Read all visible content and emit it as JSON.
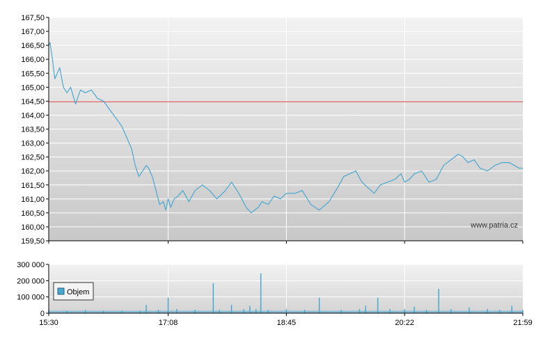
{
  "watermark": "www.patria.cz",
  "chart_data": [
    {
      "type": "line",
      "title": "",
      "xlabel": "",
      "ylabel": "",
      "ylim": [
        159.5,
        167.5
      ],
      "y_ticks": [
        "167,50",
        "167,00",
        "166,50",
        "166,00",
        "165,50",
        "165,00",
        "164,50",
        "164,00",
        "163,50",
        "163,00",
        "162,50",
        "162,00",
        "161,50",
        "161,00",
        "160,50",
        "160,00",
        "159,50"
      ],
      "x_ticks": [
        "15:30",
        "17:08",
        "18:45",
        "20:22",
        "21:59"
      ],
      "x_range": [
        "15:30",
        "21:59"
      ],
      "reference_line": {
        "value": 164.48,
        "color": "#cc3333"
      },
      "line_color": "#4aa8d0",
      "grid": true,
      "series": [
        {
          "x": [
            "15:30",
            "15:31",
            "15:33",
            "15:35",
            "15:37",
            "15:39",
            "15:42",
            "15:45",
            "15:48",
            "15:52",
            "15:56",
            "16:00",
            "16:05",
            "16:10",
            "16:15",
            "16:20",
            "16:25",
            "16:30",
            "16:34",
            "16:38",
            "16:41",
            "16:44",
            "16:47",
            "16:50",
            "16:52",
            "16:55",
            "16:58",
            "17:01",
            "17:04",
            "17:06",
            "17:08",
            "17:10",
            "17:13",
            "17:16",
            "17:20",
            "17:25",
            "17:30",
            "17:36",
            "17:42",
            "17:48",
            "17:55",
            "18:00",
            "18:06",
            "18:12",
            "18:16",
            "18:19",
            "18:22",
            "18:25",
            "18:30",
            "18:35",
            "18:40",
            "18:45",
            "18:52",
            "18:58",
            "19:05",
            "19:12",
            "19:20",
            "19:27",
            "19:32",
            "19:37",
            "19:42",
            "19:47",
            "19:52",
            "19:57",
            "20:02",
            "20:08",
            "20:14",
            "20:19",
            "20:22",
            "20:26",
            "20:30",
            "20:36",
            "20:42",
            "20:48",
            "20:54",
            "21:00",
            "21:06",
            "21:10",
            "21:14",
            "21:19",
            "21:24",
            "21:30",
            "21:36",
            "21:42",
            "21:48",
            "21:52",
            "21:56",
            "21:59"
          ],
          "values": [
            166.5,
            166.6,
            166.0,
            165.3,
            165.5,
            165.7,
            165.0,
            164.8,
            165.0,
            164.4,
            164.9,
            164.8,
            164.9,
            164.6,
            164.5,
            164.2,
            163.9,
            163.6,
            163.2,
            162.8,
            162.2,
            161.8,
            162.0,
            162.2,
            162.1,
            161.8,
            161.3,
            160.8,
            160.9,
            160.6,
            161.0,
            160.7,
            161.0,
            161.1,
            161.3,
            160.9,
            161.3,
            161.5,
            161.3,
            161.0,
            161.3,
            161.6,
            161.2,
            160.7,
            160.5,
            160.6,
            160.7,
            160.9,
            160.8,
            161.1,
            161.0,
            161.2,
            161.2,
            161.3,
            160.8,
            160.6,
            160.9,
            161.4,
            161.8,
            161.9,
            162.0,
            161.6,
            161.4,
            161.2,
            161.5,
            161.6,
            161.7,
            161.9,
            161.6,
            161.7,
            161.9,
            162.0,
            161.6,
            161.7,
            162.2,
            162.4,
            162.6,
            162.5,
            162.3,
            162.4,
            162.1,
            162.0,
            162.2,
            162.3,
            162.3,
            162.2,
            162.1,
            162.1
          ]
        }
      ]
    },
    {
      "type": "bar",
      "title": "",
      "xlabel": "",
      "ylabel": "",
      "ylim": [
        0,
        300000
      ],
      "y_ticks": [
        "300 000",
        "200 000",
        "100 000",
        "0"
      ],
      "x_ticks": [
        "15:30",
        "17:08",
        "18:45",
        "20:22",
        "21:59"
      ],
      "legend": {
        "label": "Objem",
        "placement": "left",
        "color": "#4aa8d0"
      },
      "bar_color": "#4aa8d0",
      "series": [
        {
          "name": "Objem",
          "x": [
            "15:30",
            "15:45",
            "16:00",
            "16:15",
            "16:30",
            "16:45",
            "16:50",
            "17:00",
            "17:08",
            "17:15",
            "17:30",
            "17:45",
            "17:50",
            "18:00",
            "18:10",
            "18:15",
            "18:20",
            "18:24",
            "18:30",
            "18:45",
            "19:00",
            "19:12",
            "19:30",
            "19:45",
            "19:50",
            "20:00",
            "20:10",
            "20:22",
            "20:30",
            "20:40",
            "20:50",
            "21:00",
            "21:15",
            "21:30",
            "21:40",
            "21:50",
            "21:59"
          ],
          "values": [
            20000,
            15000,
            20000,
            15000,
            15000,
            15000,
            50000,
            20000,
            95000,
            25000,
            20000,
            185000,
            20000,
            50000,
            25000,
            45000,
            25000,
            245000,
            20000,
            25000,
            20000,
            95000,
            20000,
            25000,
            45000,
            95000,
            25000,
            25000,
            40000,
            20000,
            150000,
            25000,
            35000,
            25000,
            20000,
            45000,
            20000
          ]
        }
      ]
    }
  ]
}
